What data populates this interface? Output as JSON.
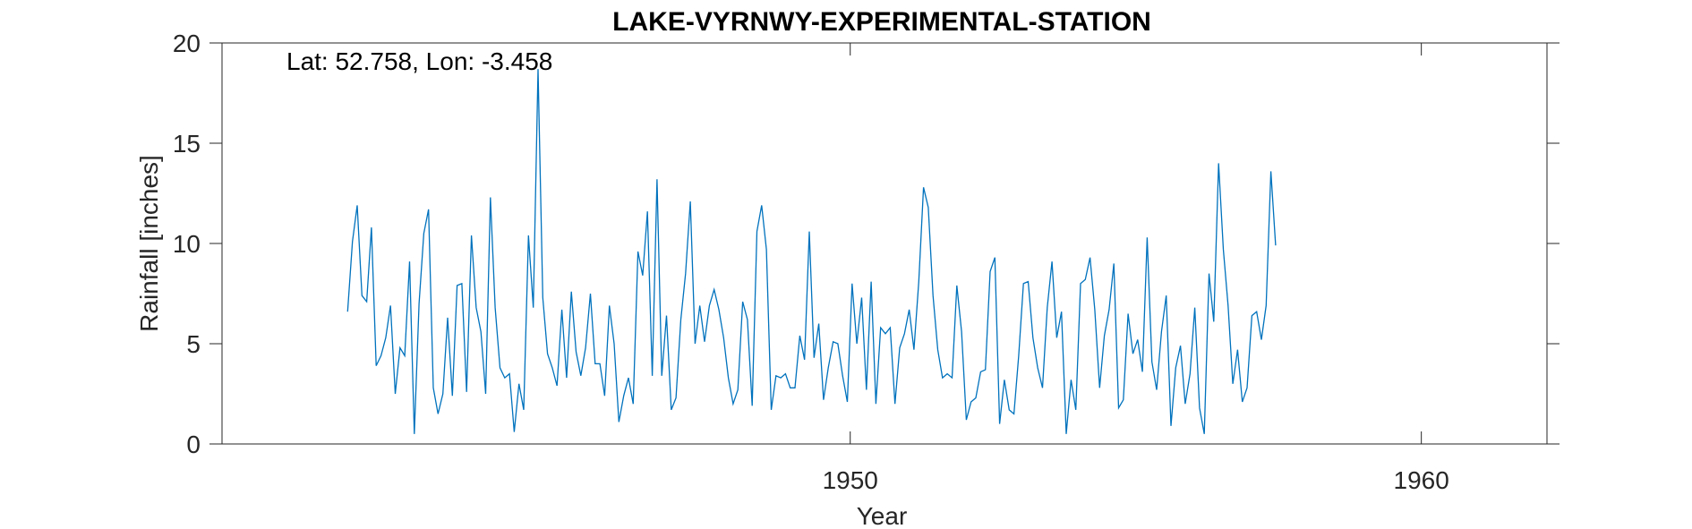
{
  "chart_data": {
    "type": "line",
    "title": "LAKE-VYRNWY-EXPERIMENTAL-STATION",
    "annotation": "Lat: 52.758, Lon: -3.458",
    "xlabel": "Year",
    "ylabel": "Rainfall [inches]",
    "xlim": [
      1939.0,
      1962.2
    ],
    "ylim": [
      0,
      20
    ],
    "xticks": [
      1950,
      1960
    ],
    "yticks": [
      0,
      5,
      10,
      15,
      20
    ],
    "grid": false,
    "line_color": "#0072BD",
    "series": [
      {
        "x_start": 1941.2,
        "step": 0.08333,
        "values": [
          6.6,
          10.1,
          11.9,
          7.4,
          7.1,
          10.8,
          3.9,
          4.4,
          5.3,
          6.9,
          2.5,
          4.8,
          4.4,
          9.1,
          0.5,
          7.0,
          10.5,
          11.7,
          2.8,
          1.5,
          2.5,
          6.3,
          2.4,
          7.9,
          8.0,
          2.6,
          10.4,
          6.8,
          5.6,
          2.5,
          12.3,
          6.8,
          3.8,
          3.3,
          3.5,
          0.6,
          3.0,
          1.7,
          10.4,
          6.8,
          18.7,
          7.3,
          4.5,
          3.8,
          2.9,
          6.7,
          3.3,
          7.6,
          4.6,
          3.4,
          4.8,
          7.5,
          4.0,
          4.0,
          2.4,
          6.9,
          5.0,
          1.1,
          2.4,
          3.3,
          2.0,
          9.6,
          8.4,
          11.6,
          3.4,
          13.2,
          3.4,
          6.4,
          1.7,
          2.3,
          6.2,
          8.5,
          12.1,
          5.0,
          6.9,
          5.1,
          6.9,
          7.7,
          6.7,
          5.3,
          3.3,
          2.0,
          2.7,
          7.1,
          6.2,
          1.9,
          10.6,
          11.9,
          9.7,
          1.7,
          3.4,
          3.3,
          3.5,
          2.8,
          2.8,
          5.4,
          4.2,
          10.6,
          4.3,
          6.0,
          2.2,
          3.8,
          5.1,
          5.0,
          3.4,
          2.1,
          8.0,
          5.0,
          7.3,
          2.7,
          8.1,
          2.0,
          5.8,
          5.5,
          5.8,
          2.0,
          4.8,
          5.5,
          6.7,
          4.7,
          8.1,
          12.8,
          11.8,
          7.4,
          4.7,
          3.3,
          3.5,
          3.3,
          7.9,
          5.6,
          1.2,
          2.1,
          2.3,
          3.6,
          3.7,
          8.6,
          9.3,
          1.0,
          3.2,
          1.7,
          1.5,
          4.4,
          8.0,
          8.1,
          5.3,
          3.8,
          2.8,
          6.8,
          9.1,
          5.3,
          6.6,
          0.5,
          3.2,
          1.7,
          8.0,
          8.2,
          9.3,
          6.7,
          2.8,
          5.4,
          6.7,
          9.0,
          1.8,
          2.2,
          6.5,
          4.5,
          5.2,
          3.6,
          10.3,
          4.1,
          2.7,
          5.6,
          7.4,
          0.9,
          3.8,
          4.9,
          2.0,
          3.5,
          6.8,
          1.8,
          0.5,
          8.5,
          6.1,
          14.0,
          9.7,
          6.9,
          3.0,
          4.7,
          2.1,
          2.8,
          6.4,
          6.6,
          5.2,
          6.9,
          13.6,
          9.9
        ]
      }
    ]
  }
}
